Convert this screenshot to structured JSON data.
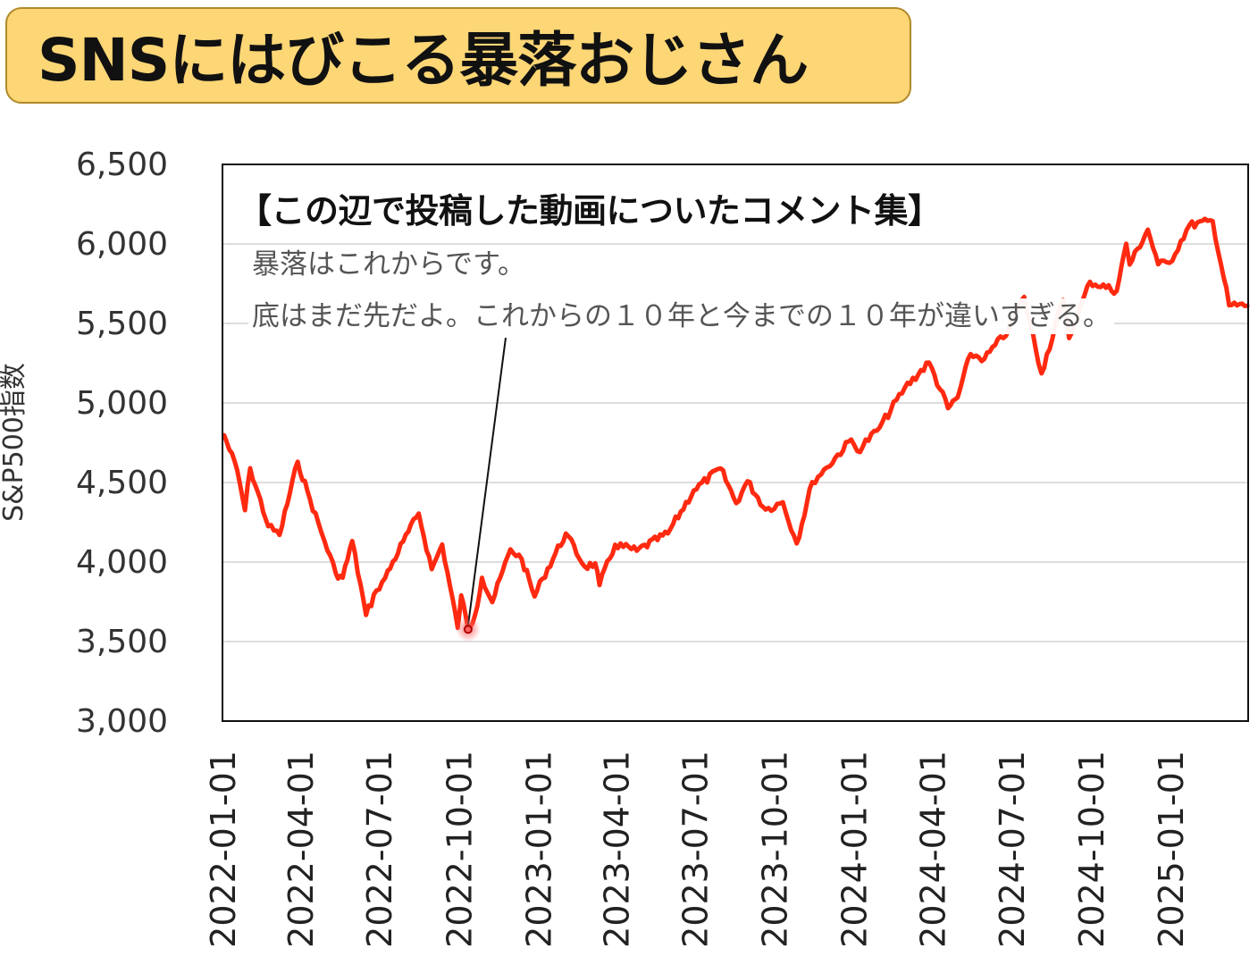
{
  "title": "SNSにはびこる暴落おじさん",
  "annotation": {
    "heading": "【この辺で投稿した動画についたコメント集】",
    "comments": [
      "暴落はこれからです。",
      "底はまだ先だよ。これからの１０年と今までの１０年が違いすぎる。"
    ],
    "pointer_date": "2022-10-12",
    "pointer_value": 3577
  },
  "colors": {
    "banner": "#fdd676",
    "line": "#ff2a10",
    "grid": "#dddddd",
    "axis": "#111111",
    "text": "#333333"
  },
  "chart_data": {
    "type": "line",
    "title": "",
    "xlabel": "",
    "ylabel": "S&P500指数",
    "ylim": [
      3000,
      6500
    ],
    "yticks": [
      3000,
      3500,
      4000,
      4500,
      5000,
      5500,
      6000,
      6500
    ],
    "ytick_labels": [
      "3,000",
      "3,500",
      "4,000",
      "4,500",
      "5,000",
      "5,500",
      "6,000",
      "6,500"
    ],
    "xlim": [
      "2022-01-01",
      "2025-04-01"
    ],
    "xticks": [
      "2022-01-01",
      "2022-04-01",
      "2022-07-01",
      "2022-10-01",
      "2023-01-01",
      "2023-04-01",
      "2023-07-01",
      "2023-10-01",
      "2024-01-01",
      "2024-04-01",
      "2024-07-01",
      "2024-10-01",
      "2025-01-01"
    ],
    "grid": true,
    "series": [
      {
        "x": [
          "2022-01-03",
          "2022-01-18",
          "2022-01-27",
          "2022-02-02",
          "2022-02-23",
          "2022-03-08",
          "2022-03-29",
          "2022-04-12",
          "2022-04-29",
          "2022-05-12",
          "2022-05-20",
          "2022-05-31",
          "2022-06-16",
          "2022-06-28",
          "2022-07-08",
          "2022-07-29",
          "2022-08-16",
          "2022-08-31",
          "2022-09-12",
          "2022-09-30",
          "2022-10-04",
          "2022-10-12",
          "2022-10-20",
          "2022-10-28",
          "2022-11-09",
          "2022-11-30",
          "2022-12-13",
          "2022-12-28",
          "2023-01-06",
          "2023-02-02",
          "2023-02-24",
          "2023-03-08",
          "2023-03-13",
          "2023-03-31",
          "2023-04-25",
          "2023-05-31",
          "2023-06-30",
          "2023-07-31",
          "2023-08-18",
          "2023-08-31",
          "2023-09-21",
          "2023-10-11",
          "2023-10-27",
          "2023-11-14",
          "2023-12-01",
          "2023-12-29",
          "2024-01-05",
          "2024-01-31",
          "2024-02-29",
          "2024-03-28",
          "2024-04-19",
          "2024-04-30",
          "2024-05-15",
          "2024-05-31",
          "2024-06-28",
          "2024-07-16",
          "2024-08-05",
          "2024-08-30",
          "2024-09-06",
          "2024-09-30",
          "2024-10-31",
          "2024-11-11",
          "2024-11-15",
          "2024-12-06",
          "2024-12-18",
          "2024-12-31",
          "2025-01-23",
          "2025-02-19",
          "2025-03-10",
          "2025-03-31"
        ],
        "values": [
          4797,
          4577,
          4326,
          4590,
          4225,
          4170,
          4631,
          4397,
          4132,
          3930,
          3901,
          4132,
          3667,
          3821,
          3899,
          4130,
          4305,
          3955,
          4110,
          3586,
          3790,
          3577,
          3665,
          3901,
          3748,
          4080,
          4019,
          3783,
          3895,
          4179,
          3970,
          3992,
          3855,
          4109,
          4071,
          4180,
          4450,
          4589,
          4370,
          4508,
          4330,
          4376,
          4117,
          4502,
          4595,
          4770,
          4697,
          4846,
          5096,
          5254,
          4967,
          5035,
          5308,
          5277,
          5460,
          5667,
          5186,
          5648,
          5408,
          5762,
          5705,
          6001,
          5870,
          6090,
          5872,
          5881,
          6118,
          6144,
          5614,
          5611
        ]
      }
    ]
  }
}
